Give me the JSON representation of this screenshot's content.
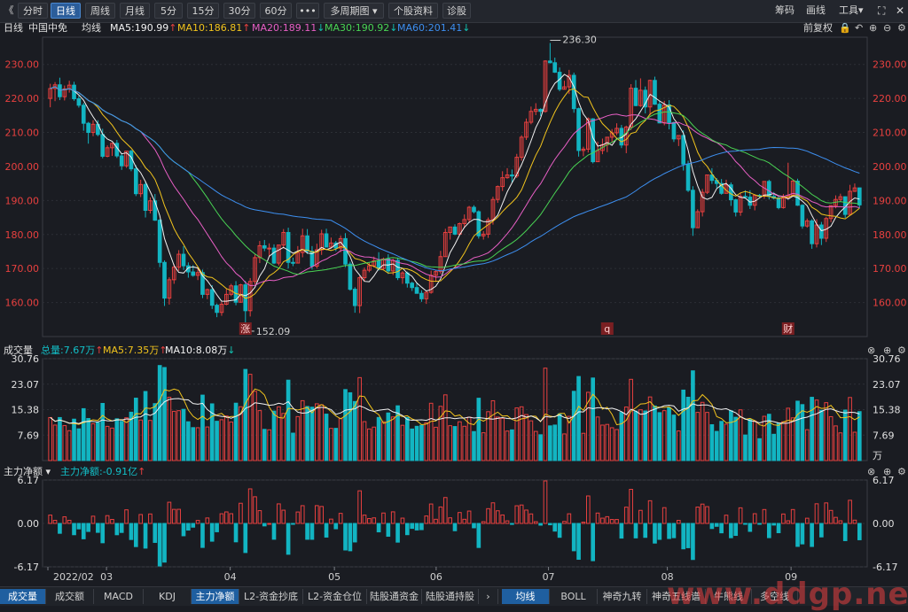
{
  "toolbar": {
    "back_glyph": "《",
    "period_tabs": [
      "分时",
      "日线",
      "周线",
      "月线",
      "5分",
      "15分",
      "30分",
      "60分"
    ],
    "more_glyph": "•••",
    "multi_period": "多周期图",
    "profile": "个股资料",
    "diagnose": "诊股",
    "right": [
      "筹码",
      "画线",
      "工具"
    ]
  },
  "kline_legend": {
    "period": "日线",
    "stock": "中国中免",
    "ma_label": "均线",
    "ma5": "MA5:190.99",
    "ma10": "MA10:186.81",
    "ma20": "MA20:189.11",
    "ma30": "MA30:190.92",
    "ma60": "MA60:201.41",
    "adjust": "前复权"
  },
  "volume_legend": {
    "title": "成交量",
    "total": "总量:7.67万",
    "ma5": "MA5:7.35万",
    "ma10": "MA10:8.08万"
  },
  "flow_legend": {
    "title": "主力净额",
    "value": "主力净额:-0.91亿"
  },
  "bottom_tabs_left": [
    "成交量",
    "成交额",
    "MACD",
    "KDJ",
    "主力净额",
    "L2-资金抄底",
    "L2-资金仓位",
    "陆股通资金",
    "陆股通持股"
  ],
  "bottom_tabs_right": [
    "均线",
    "BOLL",
    "神奇九转",
    "神奇五线谱",
    "牛熊线",
    "多空线"
  ],
  "watermark": "www.ddgp.net",
  "colors": {
    "up": "#e8403f",
    "down": "#12b5c2",
    "ma5": "#f2f2f2",
    "ma10": "#f2c41d",
    "ma20": "#e85fc5",
    "ma30": "#49d454",
    "ma60": "#3d8ff0"
  },
  "chart_data": [
    {
      "type": "candlestick",
      "title": "中国中免 日线",
      "y_ticks": [
        "230.00",
        "220.00",
        "210.00",
        "200.00",
        "190.00",
        "180.00",
        "170.00",
        "160.00"
      ],
      "ylim": [
        150,
        238
      ],
      "annotations": {
        "high": "236.30",
        "low": "152.09",
        "markers": [
          "涨",
          "q",
          "财"
        ]
      },
      "candles": [
        [
          220.0,
          222.9,
          224.3,
          217.4
        ],
        [
          222.9,
          224.0,
          224.8,
          219.2
        ],
        [
          224.0,
          220.5,
          226.1,
          219.5
        ],
        [
          220.5,
          222.8,
          223.8,
          219.4
        ],
        [
          222.8,
          223.9,
          225.2,
          221.7
        ],
        [
          223.9,
          219.9,
          224.9,
          219.3
        ],
        [
          219.9,
          218.0,
          220.8,
          217.3
        ],
        [
          218.0,
          212.7,
          218.7,
          210.5
        ],
        [
          212.7,
          210.0,
          213.1,
          206.7
        ],
        [
          210.0,
          212.4,
          213.6,
          208.9
        ],
        [
          212.4,
          209.4,
          213.6,
          208.9
        ],
        [
          209.4,
          203.0,
          211.1,
          202.4
        ],
        [
          203.0,
          205.5,
          206.2,
          202.7
        ],
        [
          205.5,
          206.8,
          207.0,
          203.1
        ],
        [
          206.8,
          203.1,
          207.8,
          202.5
        ],
        [
          203.1,
          200.2,
          203.9,
          199.0
        ],
        [
          200.2,
          204.5,
          204.5,
          199.6
        ],
        [
          204.5,
          199.3,
          204.9,
          198.6
        ],
        [
          199.3,
          192.0,
          200.4,
          191.3
        ],
        [
          192.0,
          194.7,
          196.1,
          191.0
        ],
        [
          194.7,
          187.1,
          195.7,
          185.0
        ],
        [
          187.1,
          189.9,
          190.9,
          186.2
        ],
        [
          189.9,
          184.2,
          191.9,
          184.0
        ],
        [
          184.2,
          171.8,
          184.5,
          170.4
        ],
        [
          171.8,
          161.3,
          172.4,
          159.0
        ],
        [
          161.3,
          166.7,
          167.4,
          159.4
        ],
        [
          166.7,
          170.4,
          171.3,
          165.5
        ],
        [
          170.4,
          174.2,
          175.4,
          169.3
        ],
        [
          174.2,
          170.8,
          176.6,
          169.6
        ],
        [
          170.8,
          169.0,
          171.8,
          167.3
        ],
        [
          169.0,
          168.0,
          171.0,
          167.6
        ],
        [
          168.0,
          168.8,
          170.1,
          166.6
        ],
        [
          168.8,
          162.4,
          169.7,
          161.3
        ],
        [
          162.4,
          163.8,
          164.1,
          161.0
        ],
        [
          163.8,
          159.2,
          165.1,
          158.1
        ],
        [
          159.2,
          157.1,
          159.7,
          155.7
        ],
        [
          157.1,
          159.5,
          160.2,
          156.1
        ],
        [
          159.5,
          162.4,
          164.0,
          159.2
        ],
        [
          162.4,
          164.9,
          165.5,
          161.9
        ],
        [
          164.9,
          160.1,
          166.3,
          159.2
        ],
        [
          160.1,
          165.2,
          165.5,
          159.9
        ],
        [
          165.2,
          157.6,
          166.4,
          152.1
        ],
        [
          157.6,
          166.2,
          167.2,
          155.9
        ],
        [
          166.2,
          173.2,
          174.1,
          165.3
        ],
        [
          173.2,
          176.7,
          178.1,
          171.6
        ],
        [
          176.7,
          176.0,
          178.4,
          175.1
        ],
        [
          176.0,
          176.0,
          177.4,
          173.7
        ],
        [
          176.0,
          171.6,
          177.1,
          171.3
        ],
        [
          171.6,
          176.9,
          177.0,
          170.9
        ],
        [
          176.9,
          180.6,
          181.6,
          175.9
        ],
        [
          180.6,
          171.8,
          182.0,
          170.0
        ],
        [
          171.8,
          171.6,
          173.2,
          170.7
        ],
        [
          171.6,
          174.7,
          176.6,
          171.6
        ],
        [
          174.7,
          179.6,
          181.7,
          173.3
        ],
        [
          179.6,
          175.1,
          181.6,
          174.3
        ],
        [
          175.1,
          170.7,
          176.6,
          169.7
        ],
        [
          170.7,
          175.5,
          177.3,
          170.0
        ],
        [
          175.5,
          180.2,
          181.4,
          174.0
        ],
        [
          180.2,
          176.3,
          181.7,
          176.2
        ],
        [
          176.3,
          177.5,
          179.1,
          175.9
        ],
        [
          177.5,
          176.0,
          178.1,
          175.1
        ],
        [
          176.0,
          178.8,
          179.7,
          174.8
        ],
        [
          178.8,
          171.3,
          180.4,
          170.4
        ],
        [
          171.3,
          163.9,
          172.0,
          163.5
        ],
        [
          163.9,
          159.1,
          164.5,
          157.0
        ],
        [
          159.1,
          167.3,
          167.8,
          156.9
        ],
        [
          167.3,
          169.5,
          170.3,
          166.2
        ],
        [
          169.5,
          170.8,
          171.7,
          168.9
        ],
        [
          170.8,
          172.3,
          173.5,
          170.3
        ],
        [
          172.3,
          170.0,
          174.8,
          169.4
        ],
        [
          170.0,
          172.8,
          173.2,
          169.5
        ],
        [
          172.8,
          169.3,
          174.2,
          168.4
        ],
        [
          169.3,
          172.4,
          172.9,
          168.1
        ],
        [
          172.4,
          167.3,
          173.2,
          166.6
        ],
        [
          167.3,
          168.7,
          169.2,
          165.5
        ],
        [
          168.7,
          165.7,
          169.1,
          164.4
        ],
        [
          165.7,
          164.4,
          166.1,
          163.4
        ],
        [
          164.4,
          162.7,
          165.8,
          162.7
        ],
        [
          162.7,
          161.1,
          163.6,
          160.2
        ],
        [
          161.1,
          163.0,
          163.4,
          159.6
        ],
        [
          163.0,
          168.0,
          169.4,
          162.6
        ],
        [
          168.0,
          169.1,
          169.5,
          166.1
        ],
        [
          169.1,
          173.5,
          175.2,
          168.4
        ],
        [
          173.5,
          180.6,
          181.7,
          173.4
        ],
        [
          180.6,
          182.2,
          182.3,
          178.5
        ],
        [
          182.2,
          180.1,
          183.0,
          179.8
        ],
        [
          180.1,
          183.2,
          183.5,
          179.7
        ],
        [
          183.2,
          184.4,
          185.9,
          181.9
        ],
        [
          184.4,
          188.0,
          188.4,
          183.4
        ],
        [
          188.0,
          186.7,
          188.6,
          186.2
        ],
        [
          186.7,
          179.6,
          187.1,
          178.8
        ],
        [
          179.6,
          180.1,
          181.0,
          178.5
        ],
        [
          180.1,
          184.3,
          185.0,
          179.0
        ],
        [
          184.3,
          190.3,
          191.1,
          182.9
        ],
        [
          190.3,
          194.1,
          194.4,
          189.3
        ],
        [
          194.1,
          196.7,
          198.6,
          192.8
        ],
        [
          196.7,
          197.5,
          199.5,
          196.4
        ],
        [
          197.5,
          197.2,
          199.1,
          195.2
        ],
        [
          197.2,
          202.7,
          203.7,
          196.6
        ],
        [
          202.7,
          208.6,
          209.2,
          201.7
        ],
        [
          208.6,
          213.0,
          214.1,
          207.8
        ],
        [
          213.0,
          216.2,
          217.6,
          212.4
        ],
        [
          216.2,
          216.8,
          218.6,
          215.1
        ],
        [
          216.8,
          216.2,
          217.1,
          214.8
        ],
        [
          216.2,
          231.0,
          231.2,
          215.8
        ],
        [
          231.0,
          230.5,
          236.3,
          230.3
        ],
        [
          230.5,
          227.7,
          232.0,
          227.5
        ],
        [
          227.7,
          222.7,
          229.1,
          222.1
        ],
        [
          222.7,
          223.4,
          225.2,
          222.6
        ],
        [
          223.4,
          226.8,
          228.4,
          221.3
        ],
        [
          226.8,
          217.0,
          227.6,
          215.8
        ],
        [
          217.0,
          204.7,
          217.3,
          202.9
        ],
        [
          204.7,
          205.1,
          205.8,
          203.0
        ],
        [
          205.1,
          214.0,
          214.4,
          204.1
        ],
        [
          214.0,
          201.4,
          214.2,
          200.9
        ],
        [
          201.4,
          204.7,
          207.3,
          201.3
        ],
        [
          204.7,
          206.4,
          208.2,
          203.6
        ],
        [
          206.4,
          208.6,
          208.7,
          204.2
        ],
        [
          208.6,
          209.9,
          211.0,
          206.9
        ],
        [
          209.9,
          211.2,
          212.7,
          209.2
        ],
        [
          211.2,
          206.3,
          212.2,
          205.4
        ],
        [
          206.3,
          211.6,
          212.0,
          203.9
        ],
        [
          211.6,
          223.0,
          224.2,
          210.7
        ],
        [
          223.0,
          217.9,
          225.4,
          217.7
        ],
        [
          217.9,
          222.4,
          225.9,
          217.5
        ],
        [
          222.4,
          217.5,
          223.5,
          215.6
        ],
        [
          217.5,
          225.3,
          225.5,
          215.0
        ],
        [
          225.3,
          218.3,
          226.4,
          218.1
        ],
        [
          218.3,
          212.8,
          219.3,
          212.7
        ],
        [
          212.8,
          218.1,
          219.3,
          212.1
        ],
        [
          218.1,
          212.9,
          219.5,
          210.9
        ],
        [
          212.9,
          208.1,
          213.2,
          207.2
        ],
        [
          208.1,
          209.1,
          209.2,
          206.0
        ],
        [
          209.1,
          200.7,
          210.6,
          198.8
        ],
        [
          200.7,
          193.0,
          201.7,
          192.5
        ],
        [
          193.0,
          182.0,
          194.2,
          179.6
        ],
        [
          182.0,
          186.7,
          187.4,
          181.9
        ],
        [
          186.7,
          192.4,
          193.4,
          185.3
        ],
        [
          192.4,
          197.5,
          197.6,
          191.9
        ],
        [
          197.5,
          195.9,
          199.5,
          194.9
        ],
        [
          195.9,
          195.0,
          196.6,
          193.7
        ],
        [
          195.0,
          192.1,
          196.3,
          191.7
        ],
        [
          192.1,
          194.6,
          196.1,
          192.2
        ],
        [
          194.6,
          190.2,
          195.3,
          188.4
        ],
        [
          190.2,
          186.6,
          190.5,
          185.3
        ],
        [
          186.6,
          191.2,
          192.1,
          185.5
        ],
        [
          191.2,
          191.0,
          193.0,
          190.8
        ],
        [
          191.0,
          188.6,
          193.0,
          187.5
        ],
        [
          188.6,
          191.5,
          191.6,
          187.1
        ],
        [
          191.5,
          191.4,
          191.9,
          190.8
        ],
        [
          191.4,
          195.6,
          195.6,
          190.5
        ],
        [
          195.6,
          191.2,
          196.1,
          190.3
        ],
        [
          191.2,
          190.7,
          192.5,
          190.3
        ],
        [
          190.7,
          187.9,
          191.3,
          187.4
        ],
        [
          187.9,
          190.7,
          191.9,
          187.6
        ],
        [
          190.7,
          191.5,
          201.1,
          190.8
        ],
        [
          191.5,
          195.7,
          196.0,
          191.4
        ],
        [
          195.7,
          188.6,
          196.4,
          188.4
        ],
        [
          188.6,
          182.5,
          188.9,
          181.7
        ],
        [
          182.5,
          184.0,
          184.7,
          182.0
        ],
        [
          184.0,
          177.3,
          184.5,
          175.8
        ],
        [
          177.3,
          182.8,
          184.5,
          176.2
        ],
        [
          182.8,
          178.9,
          183.7,
          176.9
        ],
        [
          178.9,
          184.7,
          185.2,
          177.8
        ],
        [
          184.7,
          188.5,
          188.6,
          183.6
        ],
        [
          188.5,
          190.3,
          191.5,
          187.7
        ],
        [
          190.3,
          191.1,
          192.0,
          189.6
        ],
        [
          191.1,
          185.9,
          191.2,
          184.9
        ],
        [
          185.9,
          192.7,
          194.6,
          185.9
        ],
        [
          192.7,
          193.7,
          195.0,
          192.5
        ],
        [
          193.7,
          188.7,
          193.8,
          187.7
        ]
      ],
      "ma5_last": 190.99,
      "ma10_last": 186.81,
      "ma20_last": 189.11,
      "ma30_last": 190.92,
      "ma60_last": 201.41
    },
    {
      "type": "bar",
      "title": "成交量",
      "y_ticks": [
        "30.76",
        "23.07",
        "15.38",
        "7.69"
      ],
      "unit": "万",
      "ylim": [
        0,
        30.76
      ]
    },
    {
      "type": "bar",
      "title": "主力净额",
      "y_ticks": [
        "6.17",
        "0.00",
        "-6.17"
      ],
      "ylim": [
        -6.17,
        6.17
      ],
      "x_labels": [
        "2022/02",
        "03",
        "04",
        "05",
        "06",
        "07",
        "08",
        "09"
      ]
    }
  ]
}
